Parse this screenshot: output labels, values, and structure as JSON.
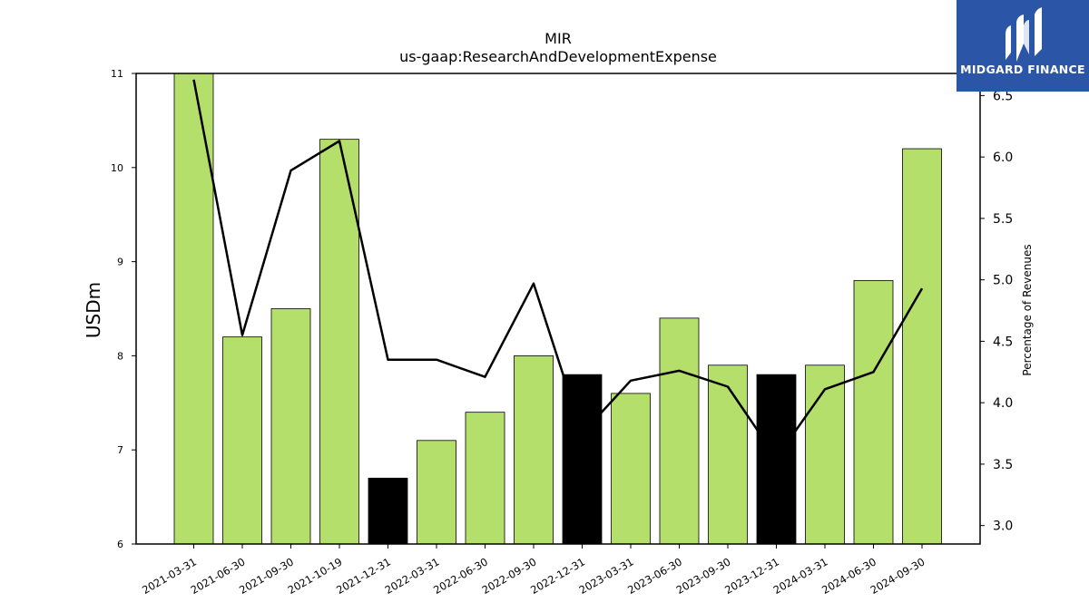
{
  "chart_data": {
    "type": "bar",
    "title": "MIR",
    "subtitle": "us-gaap:ResearchAndDevelopmentExpense",
    "ylabel": "USDm",
    "y2label": "Percentage of Revenues",
    "ylim": [
      6,
      11
    ],
    "y2lim": [
      2.85,
      6.68
    ],
    "yticks": [
      "6",
      "7",
      "8",
      "9",
      "10",
      "11"
    ],
    "y2ticks": [
      "3.0",
      "3.5",
      "4.0",
      "4.5",
      "5.0",
      "5.5",
      "6.0",
      "6.5"
    ],
    "categories": [
      "2021-03-31",
      "2021-06-30",
      "2021-09-30",
      "2021-10-19",
      "2021-12-31",
      "2022-03-31",
      "2022-06-30",
      "2022-09-30",
      "2022-12-31",
      "2023-03-31",
      "2023-06-30",
      "2023-09-30",
      "2023-12-31",
      "2024-03-31",
      "2024-06-30",
      "2024-09-30"
    ],
    "series": [
      {
        "type": "bar",
        "axis": "left",
        "values": [
          11.0,
          8.2,
          8.5,
          10.3,
          6.7,
          7.1,
          7.4,
          8.0,
          7.8,
          7.6,
          8.4,
          7.9,
          7.8,
          7.9,
          8.8,
          10.2
        ],
        "colors": [
          "#b5df6b",
          "#b5df6b",
          "#b5df6b",
          "#b5df6b",
          "#000000",
          "#b5df6b",
          "#b5df6b",
          "#b5df6b",
          "#000000",
          "#b5df6b",
          "#b5df6b",
          "#b5df6b",
          "#000000",
          "#b5df6b",
          "#b5df6b",
          "#b5df6b"
        ]
      },
      {
        "type": "line",
        "axis": "right",
        "color": "#000000",
        "values": [
          6.63,
          4.55,
          5.89,
          6.13,
          4.35,
          4.35,
          4.21,
          4.97,
          3.75,
          4.18,
          4.26,
          4.13,
          3.55,
          4.11,
          4.25,
          4.93
        ]
      }
    ],
    "grid": false,
    "legend": "none"
  },
  "logo": {
    "text": "MIDGARD FINANCE",
    "color": "#2b56a8"
  }
}
